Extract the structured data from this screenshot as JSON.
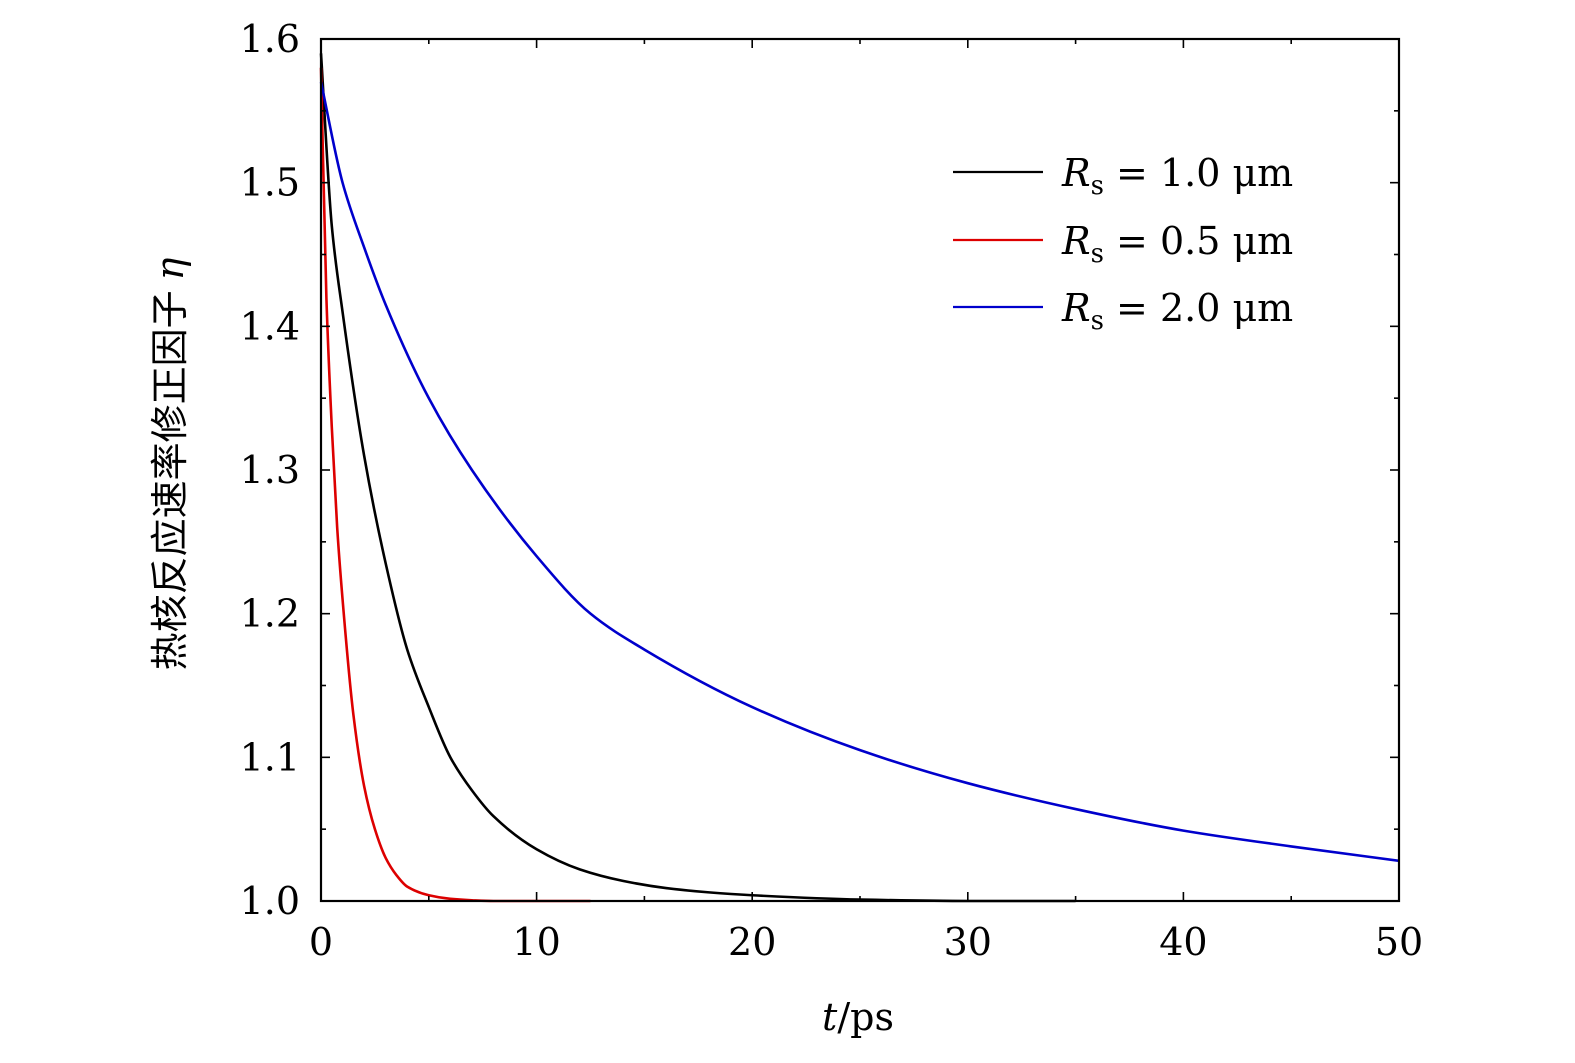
{
  "chart_data": {
    "type": "line",
    "xlabel": {
      "var": "t",
      "unit": "/ps"
    },
    "ylabel": {
      "text": "热核反应速率修正因子",
      "var": "η"
    },
    "xlim": [
      0,
      50
    ],
    "ylim": [
      1.0,
      1.6
    ],
    "x_ticks": [
      0,
      10,
      20,
      30,
      40,
      50
    ],
    "x_tick_labels": [
      "0",
      "10",
      "20",
      "30",
      "40",
      "50"
    ],
    "y_ticks": [
      1.0,
      1.1,
      1.2,
      1.3,
      1.4,
      1.5,
      1.6
    ],
    "y_tick_labels": [
      "1.0",
      "1.1",
      "1.2",
      "1.3",
      "1.4",
      "1.5",
      "1.6"
    ],
    "grid": false,
    "legend_position": "top-right",
    "series": [
      {
        "name": "Rs = 1.0 μm",
        "legend": {
          "var": "R",
          "sub": "s",
          "rest": " = 1.0 μm"
        },
        "color": "#000000",
        "x": [
          0,
          0.5,
          1,
          2,
          3,
          4,
          5,
          6,
          7,
          8,
          10,
          12,
          14,
          16,
          18,
          20,
          25,
          30,
          35
        ],
        "y": [
          1.59,
          1.47,
          1.41,
          1.31,
          1.235,
          1.175,
          1.135,
          1.1,
          1.077,
          1.059,
          1.036,
          1.022,
          1.014,
          1.009,
          1.006,
          1.004,
          1.001,
          1.0,
          1.0
        ]
      },
      {
        "name": "Rs = 0.5 μm",
        "legend": {
          "var": "R",
          "sub": "s",
          "rest": " = 0.5 μm"
        },
        "color": "#dd0000",
        "x": [
          0,
          0.25,
          0.5,
          0.75,
          1,
          1.5,
          2,
          2.5,
          3,
          3.5,
          4,
          5,
          6,
          7,
          8,
          10,
          12.5
        ],
        "y": [
          1.58,
          1.42,
          1.33,
          1.26,
          1.21,
          1.13,
          1.08,
          1.05,
          1.03,
          1.018,
          1.01,
          1.004,
          1.0015,
          1.0005,
          1.0,
          1.0,
          1.0
        ]
      },
      {
        "name": "Rs = 2.0 μm",
        "legend": {
          "var": "R",
          "sub": "s",
          "rest": " = 2.0 μm"
        },
        "color": "#0000cc",
        "x": [
          0,
          1,
          2,
          3,
          5,
          7,
          10,
          12.5,
          15,
          20,
          25,
          30,
          35,
          40,
          45,
          50
        ],
        "y": [
          1.57,
          1.5,
          1.455,
          1.415,
          1.35,
          1.3,
          1.24,
          1.2,
          1.175,
          1.135,
          1.105,
          1.082,
          1.064,
          1.049,
          1.038,
          1.028
        ]
      }
    ]
  }
}
